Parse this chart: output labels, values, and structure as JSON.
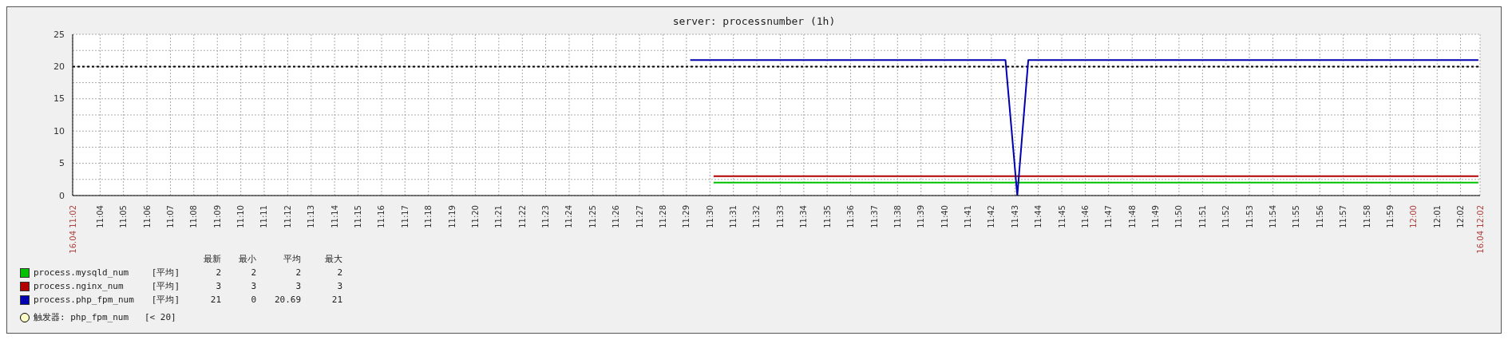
{
  "chart_data": {
    "type": "line",
    "title": "server: processnumber (1h)",
    "series": [
      {
        "name": "process.mysqld_num",
        "color": "#00c000",
        "x": [
          11.5026,
          12.046
        ],
        "values": [
          2,
          2
        ]
      },
      {
        "name": "process.nginx_num",
        "color": "#b00000",
        "x": [
          11.5026,
          12.046
        ],
        "values": [
          3,
          3
        ]
      },
      {
        "name": "process.php_fpm_num",
        "color": "#0000b0",
        "x": [
          11.486,
          11.71,
          11.7184,
          11.7262,
          12.046
        ],
        "values": [
          21,
          21,
          0,
          21,
          21
        ]
      }
    ],
    "xlim": [
      11.0472,
      12.0472
    ],
    "xticks": [
      {
        "value": 11.0472,
        "label": "16.04 11:02"
      },
      {
        "value": 11.0667,
        "label": "11:04"
      },
      {
        "value": 11.0833,
        "label": "11:05"
      },
      {
        "value": 11.1,
        "label": "11:06"
      },
      {
        "value": 11.1167,
        "label": "11:07"
      },
      {
        "value": 11.1333,
        "label": "11:08"
      },
      {
        "value": 11.15,
        "label": "11:09"
      },
      {
        "value": 11.1667,
        "label": "11:10"
      },
      {
        "value": 11.1833,
        "label": "11:11"
      },
      {
        "value": 11.2,
        "label": "11:12"
      },
      {
        "value": 11.2167,
        "label": "11:13"
      },
      {
        "value": 11.2333,
        "label": "11:14"
      },
      {
        "value": 11.25,
        "label": "11:15"
      },
      {
        "value": 11.2667,
        "label": "11:16"
      },
      {
        "value": 11.2833,
        "label": "11:17"
      },
      {
        "value": 11.3,
        "label": "11:18"
      },
      {
        "value": 11.3167,
        "label": "11:19"
      },
      {
        "value": 11.3333,
        "label": "11:20"
      },
      {
        "value": 11.35,
        "label": "11:21"
      },
      {
        "value": 11.3667,
        "label": "11:22"
      },
      {
        "value": 11.3833,
        "label": "11:23"
      },
      {
        "value": 11.4,
        "label": "11:24"
      },
      {
        "value": 11.4167,
        "label": "11:25"
      },
      {
        "value": 11.4333,
        "label": "11:26"
      },
      {
        "value": 11.45,
        "label": "11:27"
      },
      {
        "value": 11.4667,
        "label": "11:28"
      },
      {
        "value": 11.4833,
        "label": "11:29"
      },
      {
        "value": 11.5,
        "label": "11:30"
      },
      {
        "value": 11.5167,
        "label": "11:31"
      },
      {
        "value": 11.5333,
        "label": "11:32"
      },
      {
        "value": 11.55,
        "label": "11:33"
      },
      {
        "value": 11.5667,
        "label": "11:34"
      },
      {
        "value": 11.5833,
        "label": "11:35"
      },
      {
        "value": 11.6,
        "label": "11:36"
      },
      {
        "value": 11.6167,
        "label": "11:37"
      },
      {
        "value": 11.6333,
        "label": "11:38"
      },
      {
        "value": 11.65,
        "label": "11:39"
      },
      {
        "value": 11.6667,
        "label": "11:40"
      },
      {
        "value": 11.6833,
        "label": "11:41"
      },
      {
        "value": 11.7,
        "label": "11:42"
      },
      {
        "value": 11.7167,
        "label": "11:43"
      },
      {
        "value": 11.7333,
        "label": "11:44"
      },
      {
        "value": 11.75,
        "label": "11:45"
      },
      {
        "value": 11.7667,
        "label": "11:46"
      },
      {
        "value": 11.7833,
        "label": "11:47"
      },
      {
        "value": 11.8,
        "label": "11:48"
      },
      {
        "value": 11.8167,
        "label": "11:49"
      },
      {
        "value": 11.8333,
        "label": "11:50"
      },
      {
        "value": 11.85,
        "label": "11:51"
      },
      {
        "value": 11.8667,
        "label": "11:52"
      },
      {
        "value": 11.8833,
        "label": "11:53"
      },
      {
        "value": 11.9,
        "label": "11:54"
      },
      {
        "value": 11.9167,
        "label": "11:55"
      },
      {
        "value": 11.9333,
        "label": "11:56"
      },
      {
        "value": 11.95,
        "label": "11:57"
      },
      {
        "value": 11.9667,
        "label": "11:58"
      },
      {
        "value": 11.9833,
        "label": "11:59"
      },
      {
        "value": 12,
        "label": "12:00"
      },
      {
        "value": 12.0167,
        "label": "12:01"
      },
      {
        "value": 12.0333,
        "label": "12:02"
      },
      {
        "value": 12.0472,
        "label": "16.04 12:02"
      }
    ],
    "ylim": [
      0,
      25
    ],
    "yticks": [
      0,
      {
        "value": 2.5,
        "label": null
      },
      5,
      {
        "value": 7.5,
        "label": null
      },
      10,
      {
        "value": 12.5,
        "label": null
      },
      15,
      {
        "value": 17.5,
        "label": null
      },
      20,
      {
        "value": 22.5,
        "label": null
      },
      25
    ],
    "ref_lines": [
      {
        "axis": "y",
        "value": 20,
        "label": "触发器: php_fpm_num   [< 20]",
        "color": "#000000",
        "line_style": "dotted"
      }
    ],
    "annotations": [
      "最新",
      "最小",
      "平均",
      "最大",
      "[平均]",
      "2",
      "2",
      "2",
      "2",
      "[平均]",
      "3",
      "3",
      "3",
      "3",
      "[平均]",
      "21",
      "0",
      "20.69",
      "21"
    ],
    "grid": true,
    "legend": "bottom left",
    "marker": "none",
    "line_style": "solid"
  }
}
